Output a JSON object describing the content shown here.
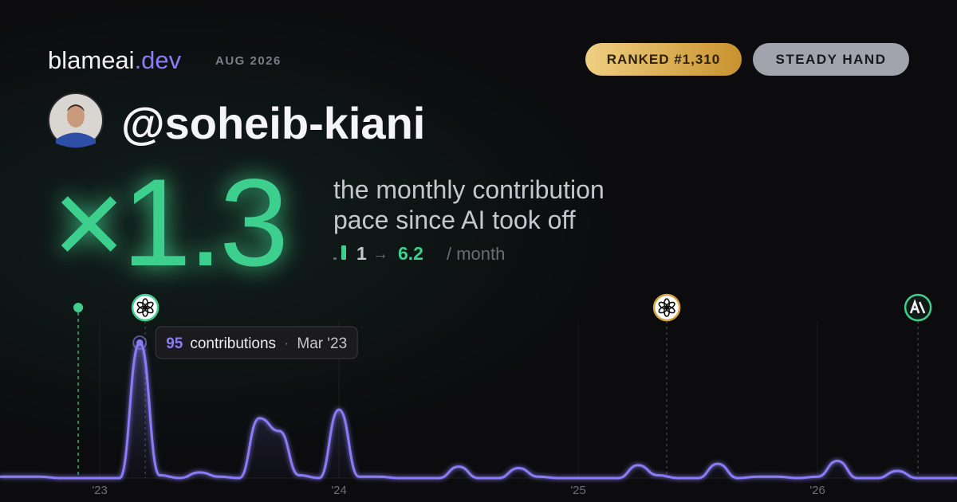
{
  "brand": {
    "name": "blameai",
    "suffix": ".dev"
  },
  "period": "AUG 2026",
  "badges": [
    "RANKED #1,310",
    "STEADY HAND"
  ],
  "username": "@soheib-kiani",
  "multiplier": "×1.3",
  "description": [
    "the monthly contribution",
    "pace since AI took off"
  ],
  "pace": {
    "before": 1,
    "arrow": "→",
    "after": 6.2,
    "unit": "/ month"
  },
  "chart_data": {
    "type": "line",
    "x": [
      2022.583,
      2022.667,
      2022.75,
      2022.833,
      2022.917,
      2023.0,
      2023.083,
      2023.167,
      2023.25,
      2023.333,
      2023.417,
      2023.5,
      2023.583,
      2023.667,
      2023.75,
      2023.833,
      2023.917,
      2024.0,
      2024.083,
      2024.167,
      2024.25,
      2024.333,
      2024.417,
      2024.5,
      2024.583,
      2024.667,
      2024.75,
      2024.833,
      2024.917,
      2025.0,
      2025.083,
      2025.167,
      2025.25,
      2025.333,
      2025.417,
      2025.5,
      2025.583,
      2025.667,
      2025.75,
      2025.833,
      2025.917,
      2026.0,
      2026.083,
      2026.167,
      2026.25,
      2026.333,
      2026.417,
      2026.5,
      2026.583
    ],
    "series": [
      {
        "name": "contributions",
        "color": "#8b7cf6",
        "values": [
          1,
          1,
          1,
          0,
          0,
          0,
          0,
          95,
          2,
          0,
          4,
          1,
          0,
          42,
          33,
          2,
          0,
          48,
          1,
          1,
          0,
          0,
          0,
          8,
          0,
          0,
          7,
          1,
          0,
          0,
          0,
          0,
          9,
          2,
          0,
          0,
          10,
          0,
          1,
          1,
          0,
          1,
          12,
          0,
          0,
          5,
          0,
          0,
          0
        ]
      }
    ],
    "xlim": [
      2022.583,
      2026.583
    ],
    "ylim": [
      0,
      100
    ],
    "xticks": [
      {
        "value": 2023,
        "label": "'23"
      },
      {
        "value": 2024,
        "label": "'24"
      },
      {
        "value": 2025,
        "label": "'25"
      },
      {
        "value": 2026,
        "label": "'26"
      }
    ],
    "grid": true,
    "tooltip": {
      "separator": "·",
      "date": "Mar '23"
    },
    "markers": [
      {
        "x": 2022.91,
        "color": "#3ecf8e",
        "shape": "dot"
      },
      {
        "x": 2023.19,
        "color": "#3ecf8e",
        "shape": "openai"
      },
      {
        "x": 2025.37,
        "color": "#d4a543",
        "shape": "openai"
      },
      {
        "x": 2026.42,
        "color": "#3ecf8e",
        "shape": "anthropic"
      }
    ]
  }
}
